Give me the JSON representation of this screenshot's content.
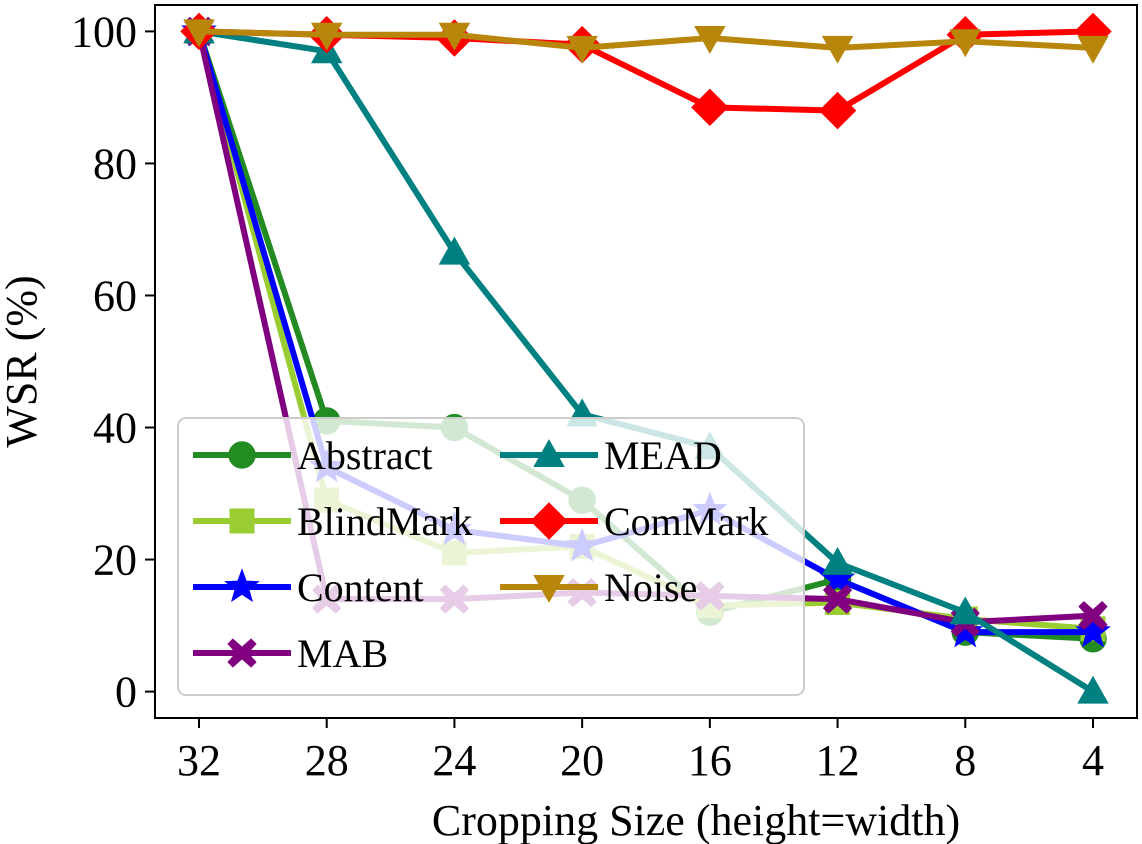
{
  "chart_data": {
    "type": "line",
    "title": "",
    "xlabel": "Cropping Size (height=width)",
    "ylabel": "WSR (%)",
    "categories": [
      "32",
      "28",
      "24",
      "20",
      "16",
      "12",
      "8",
      "4"
    ],
    "ylim": [
      -4,
      104
    ],
    "yticks": [
      0,
      20,
      40,
      60,
      80,
      100
    ],
    "grid": false,
    "legend_position": "lower-left",
    "series": [
      {
        "name": "Abstract",
        "color": "#228B22",
        "marker": "circle",
        "values": [
          100,
          41,
          40,
          29,
          12,
          17,
          9,
          8
        ]
      },
      {
        "name": "BlindMark",
        "color": "#9ACD32",
        "marker": "square",
        "values": [
          100,
          29,
          21,
          22,
          13,
          13.5,
          11,
          9.5
        ]
      },
      {
        "name": "Content",
        "color": "#0000FF",
        "marker": "star",
        "values": [
          100,
          34,
          24.5,
          22,
          27.5,
          17,
          9,
          9
        ]
      },
      {
        "name": "MAB",
        "color": "#800080",
        "marker": "x-filled",
        "values": [
          100,
          14,
          14,
          15,
          14.5,
          14,
          10.5,
          11.5
        ]
      },
      {
        "name": "MEAD",
        "color": "#008080",
        "marker": "triangle-up",
        "values": [
          100,
          97,
          66.5,
          42,
          37,
          19.5,
          12,
          0
        ]
      },
      {
        "name": "ComMark",
        "color": "#FF0000",
        "marker": "diamond",
        "values": [
          100,
          99.5,
          99,
          98,
          88.5,
          88,
          99.5,
          100
        ]
      },
      {
        "name": "Noise",
        "color": "#B8860B",
        "marker": "triangle-down",
        "values": [
          100,
          99.5,
          99.5,
          97.5,
          99,
          97.5,
          98.5,
          97.5
        ]
      }
    ]
  }
}
